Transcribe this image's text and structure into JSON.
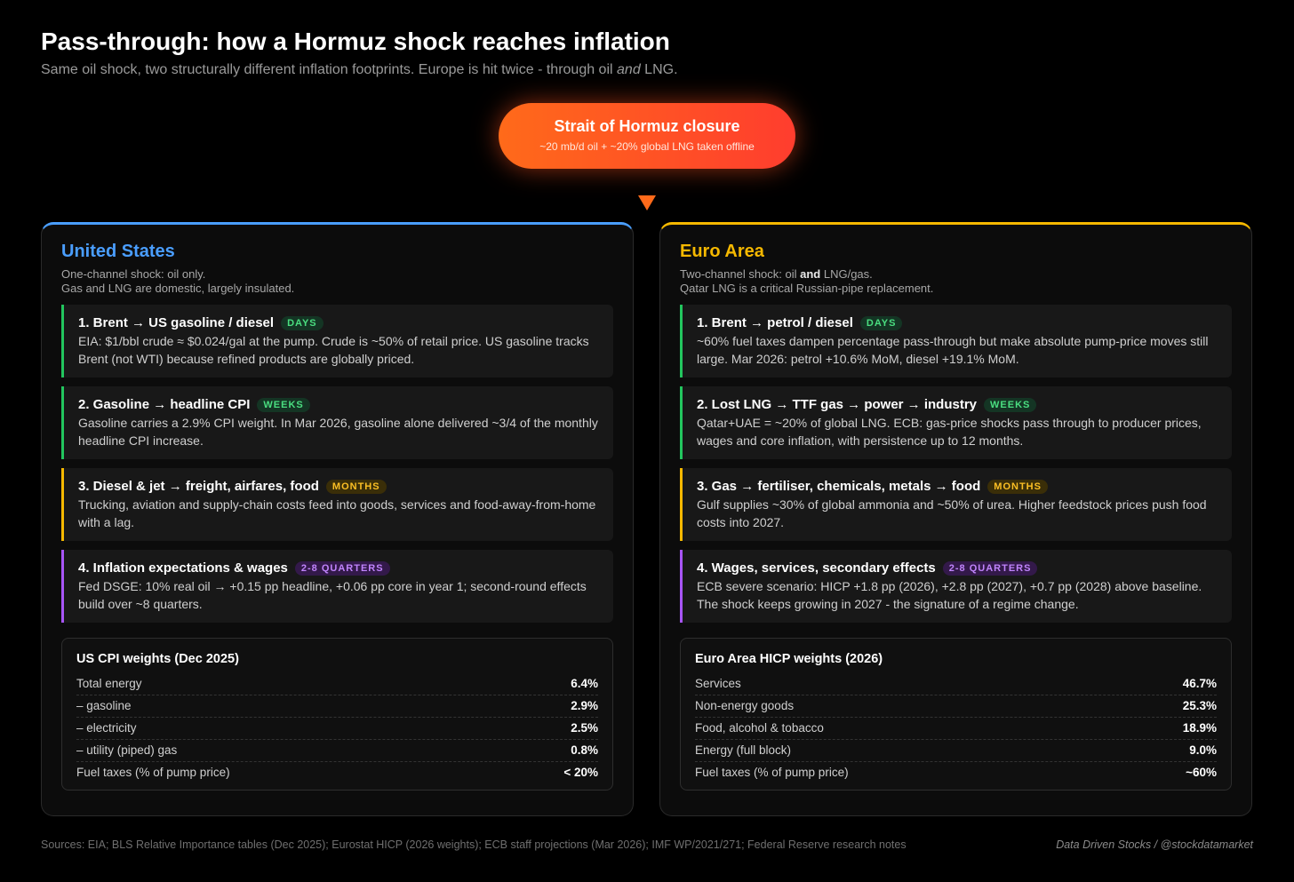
{
  "header": {
    "title": "Pass-through: how a Hormuz shock reaches inflation",
    "subtitle_parts": [
      "Same oil shock, two structurally different inflation footprints. Europe is hit twice - through oil ",
      "and",
      " LNG."
    ]
  },
  "shock": {
    "title": "Strait of Hormuz closure",
    "detail": "~20 mb/d oil + ~20% global LNG taken offline"
  },
  "panels": [
    {
      "title": "United States",
      "description_lines": [
        [
          "One-channel shock: oil only."
        ],
        [
          "Gas and LNG are domestic, largely insulated."
        ]
      ],
      "cards": [
        {
          "title": "1. Brent → US gasoline / diesel",
          "tag": "DAYS",
          "body": "EIA: $1/bbl crude ≈ $0.024/gal at the pump. Crude is ~50% of retail price. US gasoline tracks Brent (not WTI) because refined products are globally priced."
        },
        {
          "title": "2. Gasoline → headline CPI",
          "tag": "WEEKS",
          "body": "Gasoline carries a 2.9% CPI weight. In Mar 2026, gasoline alone delivered ~3/4 of the monthly headline CPI increase."
        },
        {
          "title": "3. Diesel & jet → freight, airfares, food",
          "tag": "MONTHS",
          "body": "Trucking, aviation and supply-chain costs feed into goods, services and food-away-from-home with a lag."
        },
        {
          "title": "4. Inflation expectations & wages",
          "tag": "2-8 QUARTERS",
          "body": "Fed DSGE: 10% real oil → +0.15 pp headline, +0.06 pp core in year 1; second-round effects build over ~8 quarters."
        }
      ],
      "table": {
        "title": "US CPI weights (Dec 2025)",
        "rows": [
          [
            "Total energy",
            "6.4%"
          ],
          [
            "– gasoline",
            "2.9%"
          ],
          [
            "– electricity",
            "2.5%"
          ],
          [
            "– utility (piped) gas",
            "0.8%"
          ],
          [
            "Fuel taxes (% of pump price)",
            "< 20%"
          ]
        ]
      }
    },
    {
      "title": "Euro Area",
      "description_lines": [
        [
          "Two-channel shock: oil ",
          "and",
          " LNG/gas."
        ],
        [
          "Qatar LNG is a critical Russian-pipe replacement."
        ]
      ],
      "cards": [
        {
          "title": "1. Brent → petrol / diesel",
          "tag": "DAYS",
          "body": "~60% fuel taxes dampen percentage pass-through but make absolute pump-price moves still large. Mar 2026: petrol +10.6% MoM, diesel +19.1% MoM."
        },
        {
          "title": "2. Lost LNG → TTF gas → power → industry",
          "tag": "WEEKS",
          "body": "Qatar+UAE = ~20% of global LNG. ECB: gas-price shocks pass through to producer prices, wages and core inflation, with persistence up to 12 months."
        },
        {
          "title": "3. Gas → fertiliser, chemicals, metals → food",
          "tag": "MONTHS",
          "body": "Gulf supplies ~30% of global ammonia and ~50% of urea. Higher feedstock prices push food costs into 2027."
        },
        {
          "title": "4. Wages, services, secondary effects",
          "tag": "2-8 QUARTERS",
          "body": "ECB severe scenario: HICP +1.8 pp (2026), +2.8 pp (2027), +0.7 pp (2028) above baseline. The shock keeps growing in 2027 - the signature of a regime change."
        }
      ],
      "table": {
        "title": "Euro Area HICP weights (2026)",
        "rows": [
          [
            "Services",
            "46.7%"
          ],
          [
            "Non-energy goods",
            "25.3%"
          ],
          [
            "Food, alcohol & tobacco",
            "18.9%"
          ],
          [
            "Energy (full block)",
            "9.0%"
          ],
          [
            "Fuel taxes (% of pump price)",
            "~60%"
          ]
        ]
      }
    }
  ],
  "footer": {
    "sources": "Sources: EIA; BLS Relative Importance tables (Dec 2025); Eurostat HICP (2026 weights); ECB staff projections (Mar 2026); IMF WP/2021/271; Federal Reserve research notes",
    "credit": "Data Driven Stocks / @stockdatamarket"
  }
}
